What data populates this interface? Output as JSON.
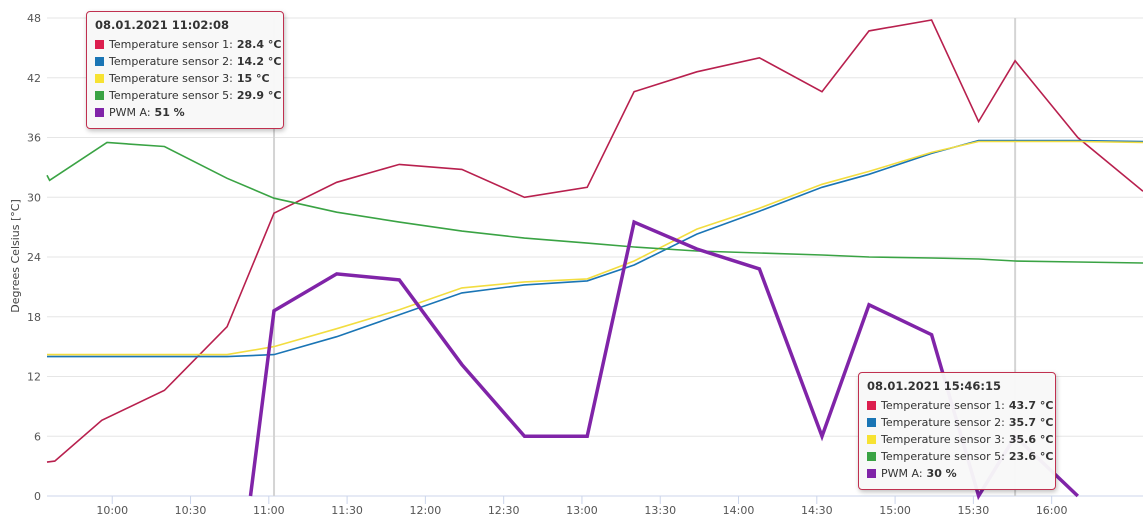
{
  "chart_data": {
    "type": "line",
    "title": "",
    "ylabel": "Degrees Celsius [°C]",
    "xlabel": "",
    "ylim": [
      0,
      48
    ],
    "yticks": [
      0,
      6,
      12,
      18,
      24,
      30,
      36,
      42,
      48
    ],
    "x_tick_labels": [
      "10:00",
      "10:30",
      "11:00",
      "11:30",
      "12:00",
      "12:30",
      "13:00",
      "13:30",
      "14:00",
      "14:30",
      "15:00",
      "15:30",
      "16:00"
    ],
    "x_tick_values": [
      "10:00",
      "10:30",
      "11:00",
      "11:30",
      "12:00",
      "12:30",
      "13:00",
      "13:30",
      "14:00",
      "14:30",
      "15:00",
      "15:30",
      "16:00"
    ],
    "xlim": [
      "09:35",
      "16:35"
    ],
    "grid": true,
    "crosshairs": [
      "11:02",
      "15:46"
    ],
    "series": [
      {
        "name": "Temperature sensor 1",
        "color": "#b8204e",
        "x": [
          "09:35",
          "09:38",
          "09:56",
          "10:20",
          "10:44",
          "11:02",
          "11:26",
          "11:50",
          "12:14",
          "12:38",
          "13:02",
          "13:20",
          "13:44",
          "14:08",
          "14:32",
          "14:50",
          "15:14",
          "15:32",
          "15:46",
          "16:10",
          "16:35"
        ],
        "values": [
          3.4,
          3.5,
          7.6,
          10.6,
          17.0,
          28.4,
          31.5,
          33.3,
          32.8,
          30.0,
          31.0,
          40.6,
          42.6,
          44.0,
          40.6,
          46.7,
          47.8,
          37.6,
          43.7,
          36.0,
          30.6
        ]
      },
      {
        "name": "Temperature sensor 2",
        "color": "#1a75b5",
        "x": [
          "09:35",
          "10:44",
          "11:02",
          "11:26",
          "11:50",
          "12:14",
          "12:38",
          "13:02",
          "13:20",
          "13:44",
          "14:08",
          "14:32",
          "14:50",
          "15:14",
          "15:32",
          "15:46",
          "16:10",
          "16:35"
        ],
        "values": [
          14.0,
          14.0,
          14.2,
          16.0,
          18.2,
          20.4,
          21.2,
          21.6,
          23.2,
          26.3,
          28.6,
          31.0,
          32.3,
          34.4,
          35.7,
          35.7,
          35.7,
          35.6
        ],
        "_": null
      },
      {
        "name": "Temperature sensor 3",
        "color": "#f2dd40",
        "x": [
          "09:35",
          "10:44",
          "11:02",
          "11:26",
          "11:50",
          "12:14",
          "12:38",
          "13:02",
          "13:20",
          "13:44",
          "14:08",
          "14:32",
          "14:50",
          "15:14",
          "15:32",
          "15:46",
          "16:10",
          "16:35"
        ],
        "values": [
          14.2,
          14.2,
          15.0,
          16.8,
          18.7,
          20.9,
          21.5,
          21.8,
          23.6,
          26.8,
          28.9,
          31.3,
          32.6,
          34.5,
          35.6,
          35.6,
          35.6,
          35.5
        ]
      },
      {
        "name": "Temperature sensor 5",
        "color": "#3aa344",
        "x": [
          "09:35",
          "09:36",
          "09:58",
          "10:20",
          "10:44",
          "11:02",
          "11:26",
          "11:50",
          "12:14",
          "12:38",
          "13:02",
          "13:20",
          "13:44",
          "14:08",
          "14:32",
          "14:50",
          "15:14",
          "15:32",
          "15:46",
          "16:10",
          "16:35"
        ],
        "values": [
          32.2,
          31.7,
          35.5,
          35.1,
          31.9,
          29.9,
          28.5,
          27.5,
          26.6,
          25.9,
          25.4,
          25.0,
          24.6,
          24.4,
          24.2,
          24.0,
          23.9,
          23.8,
          23.6,
          23.5,
          23.4
        ]
      },
      {
        "name": "PWM A",
        "color": "#8024a8",
        "x": [
          "10:53",
          "11:02",
          "11:26",
          "11:50",
          "12:14",
          "12:38",
          "13:02",
          "13:20",
          "13:44",
          "14:08",
          "14:32",
          "14:50",
          "15:14",
          "15:32",
          "15:46",
          "16:10"
        ],
        "values": [
          0,
          18.6,
          22.3,
          21.7,
          13.2,
          6.0,
          6.0,
          27.5,
          24.8,
          22.8,
          6.0,
          19.2,
          16.2,
          0,
          6.0,
          0
        ]
      }
    ],
    "tooltips": [
      {
        "time": "08.01.2021 11:02:08",
        "rows": [
          {
            "name": "Temperature sensor 1",
            "value": "28.4 °C",
            "color": "#dc1e4e"
          },
          {
            "name": "Temperature sensor 2",
            "value": "14.2 °C",
            "color": "#1a75b5"
          },
          {
            "name": "Temperature sensor 3",
            "value": "15 °C",
            "color": "#f7e232"
          },
          {
            "name": "Temperature sensor 5",
            "value": "29.9 °C",
            "color": "#3aa344"
          },
          {
            "name": "PWM A",
            "value": "51 %",
            "color": "#8024a8"
          }
        ]
      },
      {
        "time": "08.01.2021 15:46:15",
        "rows": [
          {
            "name": "Temperature sensor 1",
            "value": "43.7 °C",
            "color": "#dc1e4e"
          },
          {
            "name": "Temperature sensor 2",
            "value": "35.7 °C",
            "color": "#1a75b5"
          },
          {
            "name": "Temperature sensor 3",
            "value": "35.6 °C",
            "color": "#f7e232"
          },
          {
            "name": "Temperature sensor 5",
            "value": "23.6 °C",
            "color": "#3aa344"
          },
          {
            "name": "PWM A",
            "value": "30 %",
            "color": "#8024a8"
          }
        ]
      }
    ]
  }
}
